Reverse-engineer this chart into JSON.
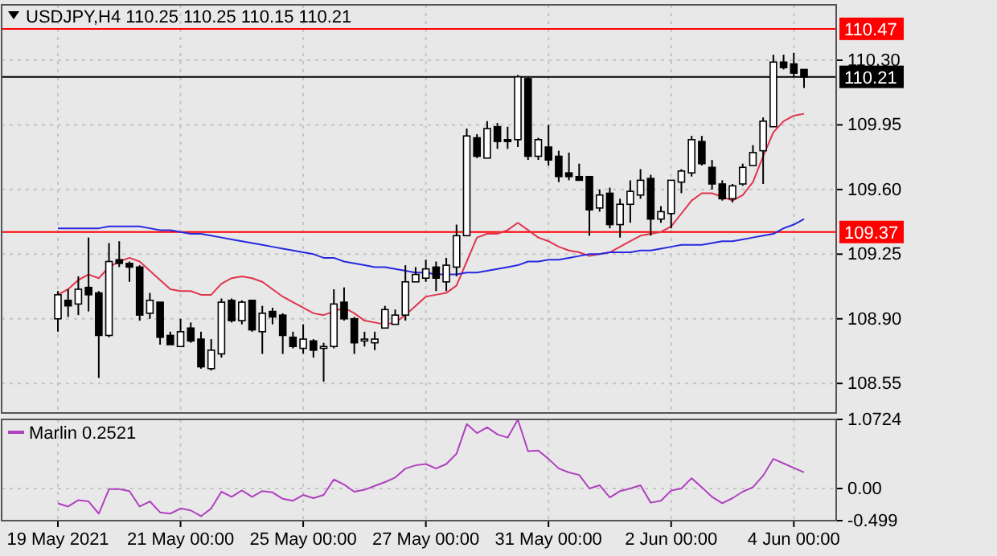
{
  "chart_data": [
    {
      "type": "candlestick",
      "title": "USDJPY,H4  110.25 110.25 110.15 110.21",
      "ohlc": [
        [
          108.9,
          109.05,
          108.83,
          109.03
        ],
        [
          109.0,
          109.06,
          108.91,
          108.97
        ],
        [
          108.98,
          109.13,
          108.92,
          109.06
        ],
        [
          109.07,
          109.34,
          108.94,
          109.03
        ],
        [
          109.04,
          109.05,
          108.58,
          108.81
        ],
        [
          108.81,
          109.31,
          108.8,
          109.21
        ],
        [
          109.22,
          109.32,
          109.18,
          109.2
        ],
        [
          109.2,
          109.21,
          109.1,
          109.18
        ],
        [
          109.18,
          109.19,
          108.89,
          108.92
        ],
        [
          108.93,
          109.04,
          108.9,
          109.0
        ],
        [
          108.99,
          108.99,
          108.76,
          108.8
        ],
        [
          108.81,
          108.83,
          108.76,
          108.76
        ],
        [
          108.75,
          108.9,
          108.75,
          108.83
        ],
        [
          108.85,
          108.88,
          108.77,
          108.78
        ],
        [
          108.79,
          108.83,
          108.63,
          108.64
        ],
        [
          108.63,
          108.79,
          108.62,
          108.73
        ],
        [
          108.71,
          109.01,
          108.69,
          108.99
        ],
        [
          109.0,
          109.01,
          108.88,
          108.89
        ],
        [
          108.89,
          109.0,
          108.87,
          108.99
        ],
        [
          109.0,
          109.0,
          108.83,
          108.84
        ],
        [
          108.83,
          108.97,
          108.71,
          108.93
        ],
        [
          108.94,
          108.96,
          108.87,
          108.91
        ],
        [
          108.92,
          108.93,
          108.71,
          108.81
        ],
        [
          108.8,
          108.83,
          108.74,
          108.75
        ],
        [
          108.74,
          108.87,
          108.71,
          108.79
        ],
        [
          108.78,
          108.79,
          108.69,
          108.73
        ],
        [
          108.74,
          108.77,
          108.56,
          108.75
        ],
        [
          108.75,
          109.06,
          108.74,
          108.98
        ],
        [
          108.99,
          109.07,
          108.89,
          108.9
        ],
        [
          108.9,
          108.91,
          108.71,
          108.77
        ],
        [
          108.78,
          108.83,
          108.75,
          108.79
        ],
        [
          108.77,
          108.83,
          108.73,
          108.79
        ],
        [
          108.85,
          108.97,
          108.85,
          108.95
        ],
        [
          108.87,
          108.95,
          108.87,
          108.92
        ],
        [
          108.92,
          109.19,
          108.89,
          109.1
        ],
        [
          109.1,
          109.18,
          109.1,
          109.14
        ],
        [
          109.12,
          109.22,
          109.1,
          109.17
        ],
        [
          109.18,
          109.21,
          109.05,
          109.12
        ],
        [
          109.1,
          109.23,
          109.05,
          109.19
        ],
        [
          109.18,
          109.41,
          109.13,
          109.35
        ],
        [
          109.35,
          109.93,
          109.35,
          109.89
        ],
        [
          109.88,
          109.9,
          109.77,
          109.78
        ],
        [
          109.77,
          109.97,
          109.77,
          109.93
        ],
        [
          109.94,
          109.96,
          109.82,
          109.86
        ],
        [
          109.87,
          109.94,
          109.82,
          109.86
        ],
        [
          109.87,
          110.22,
          109.83,
          110.21
        ],
        [
          110.2,
          110.21,
          109.76,
          109.78
        ],
        [
          109.78,
          109.88,
          109.76,
          109.87
        ],
        [
          109.83,
          109.95,
          109.73,
          109.76
        ],
        [
          109.78,
          109.81,
          109.64,
          109.67
        ],
        [
          109.69,
          109.8,
          109.65,
          109.67
        ],
        [
          109.67,
          109.74,
          109.65,
          109.65
        ],
        [
          109.67,
          109.67,
          109.35,
          109.49
        ],
        [
          109.5,
          109.6,
          109.48,
          109.57
        ],
        [
          109.58,
          109.61,
          109.39,
          109.41
        ],
        [
          109.41,
          109.55,
          109.34,
          109.52
        ],
        [
          109.52,
          109.65,
          109.42,
          109.59
        ],
        [
          109.57,
          109.71,
          109.55,
          109.65
        ],
        [
          109.66,
          109.68,
          109.35,
          109.44
        ],
        [
          109.44,
          109.51,
          109.42,
          109.48
        ],
        [
          109.47,
          109.65,
          109.39,
          109.65
        ],
        [
          109.64,
          109.71,
          109.58,
          109.7
        ],
        [
          109.69,
          109.89,
          109.67,
          109.87
        ],
        [
          109.86,
          109.89,
          109.73,
          109.74
        ],
        [
          109.72,
          109.76,
          109.6,
          109.63
        ],
        [
          109.63,
          109.65,
          109.54,
          109.55
        ],
        [
          109.55,
          109.63,
          109.53,
          109.62
        ],
        [
          109.63,
          109.74,
          109.62,
          109.72
        ],
        [
          109.73,
          109.84,
          109.73,
          109.8
        ],
        [
          109.81,
          109.99,
          109.63,
          109.97
        ],
        [
          109.94,
          110.33,
          109.94,
          110.29
        ],
        [
          110.29,
          110.33,
          110.25,
          110.26
        ],
        [
          110.28,
          110.34,
          110.21,
          110.23
        ],
        [
          110.25,
          110.25,
          110.15,
          110.21
        ]
      ],
      "series": [
        {
          "type": "line",
          "color": "#e0344c",
          "values": [
            109.03,
            109.06,
            109.11,
            109.14,
            109.12,
            109.18,
            109.21,
            109.23,
            109.21,
            109.16,
            109.11,
            109.06,
            109.05,
            109.05,
            109.03,
            109.03,
            109.09,
            109.12,
            109.13,
            109.12,
            109.1,
            109.06,
            109.02,
            108.99,
            108.96,
            108.93,
            108.92,
            108.94,
            108.96,
            108.93,
            108.89,
            108.88,
            108.87,
            108.88,
            108.92,
            108.97,
            109.02,
            109.03,
            109.04,
            109.08,
            109.21,
            109.34,
            109.36,
            109.36,
            109.38,
            109.42,
            109.38,
            109.34,
            109.32,
            109.29,
            109.27,
            109.26,
            109.24,
            109.25,
            109.26,
            109.29,
            109.32,
            109.35,
            109.36,
            109.37,
            109.4,
            109.47,
            109.54,
            109.58,
            109.58,
            109.56,
            109.54,
            109.57,
            109.64,
            109.78,
            109.91,
            109.97,
            110.0,
            110.01
          ]
        },
        {
          "type": "line",
          "color": "#2828e0",
          "values": [
            109.39,
            109.39,
            109.39,
            109.39,
            109.39,
            109.4,
            109.4,
            109.4,
            109.4,
            109.39,
            109.38,
            109.38,
            109.37,
            109.36,
            109.36,
            109.35,
            109.34,
            109.33,
            109.32,
            109.31,
            109.3,
            109.29,
            109.28,
            109.27,
            109.26,
            109.25,
            109.23,
            109.23,
            109.21,
            109.2,
            109.19,
            109.18,
            109.18,
            109.17,
            109.16,
            109.15,
            109.15,
            109.14,
            109.14,
            109.14,
            109.15,
            109.15,
            109.16,
            109.17,
            109.18,
            109.19,
            109.21,
            109.21,
            109.22,
            109.22,
            109.23,
            109.24,
            109.25,
            109.25,
            109.26,
            109.26,
            109.26,
            109.27,
            109.27,
            109.28,
            109.29,
            109.3,
            109.3,
            109.3,
            109.31,
            109.32,
            109.32,
            109.33,
            109.34,
            109.35,
            109.36,
            109.39,
            109.41,
            109.44
          ]
        }
      ],
      "ref_lines": [
        {
          "axis": "y",
          "value": 110.47,
          "label": "110.47",
          "color": "#ff0000"
        },
        {
          "axis": "y",
          "value": 109.37,
          "label": "109.37",
          "color": "#ff0000"
        },
        {
          "axis": "y",
          "value": 110.21,
          "label": "110.21",
          "color": "#000000"
        }
      ],
      "ylim": [
        108.39,
        110.6
      ],
      "yticks": [
        {
          "value": 110.3,
          "label": "110.30"
        },
        109.95,
        {
          "value": 109.6,
          "label": "109.60"
        },
        109.25,
        {
          "value": 108.9,
          "label": "108.90"
        },
        108.55
      ],
      "grid": true,
      "tick_labels": "y"
    },
    {
      "type": "line",
      "categories": [
        "19 May 2021",
        null,
        null,
        null,
        null,
        null,
        null,
        null,
        null,
        null,
        null,
        null,
        "21 May 00:00",
        null,
        null,
        null,
        null,
        null,
        null,
        null,
        null,
        null,
        null,
        null,
        "25 May 00:00",
        null,
        null,
        null,
        null,
        null,
        null,
        null,
        null,
        null,
        null,
        null,
        "27 May 00:00",
        null,
        null,
        null,
        null,
        null,
        null,
        null,
        null,
        null,
        null,
        null,
        "31 May 00:00",
        null,
        null,
        null,
        null,
        null,
        null,
        null,
        null,
        null,
        null,
        null,
        "2 Jun 00:00",
        null,
        null,
        null,
        null,
        null,
        null,
        null,
        null,
        null,
        null,
        null,
        "4 Jun 00:00",
        null
      ],
      "series": [
        {
          "name": "Marlin 0.2521",
          "color": "#b040c0",
          "values": [
            -0.23,
            -0.28,
            -0.18,
            -0.2,
            -0.39,
            -0.01,
            -0.01,
            -0.04,
            -0.28,
            -0.2,
            -0.37,
            -0.39,
            -0.31,
            -0.34,
            -0.43,
            -0.31,
            -0.05,
            -0.13,
            -0.03,
            -0.13,
            -0.04,
            -0.06,
            -0.16,
            -0.19,
            -0.1,
            -0.15,
            -0.1,
            0.14,
            0.06,
            -0.05,
            -0.02,
            0.04,
            0.1,
            0.17,
            0.31,
            0.36,
            0.38,
            0.31,
            0.38,
            0.54,
            1.0,
            0.86,
            0.95,
            0.84,
            0.79,
            1.07,
            0.58,
            0.59,
            0.46,
            0.31,
            0.25,
            0.21,
            0.0,
            0.05,
            -0.14,
            -0.04,
            0.0,
            0.05,
            -0.22,
            -0.19,
            -0.03,
            0.0,
            0.16,
            0.02,
            -0.13,
            -0.23,
            -0.15,
            -0.05,
            0.02,
            0.2,
            0.46,
            0.39,
            0.32,
            0.25
          ]
        }
      ],
      "ylim": [
        -0.499,
        1.0724
      ],
      "yticks": [
        1.0724,
        {
          "value": 0,
          "label": "0.00"
        },
        -0.499
      ],
      "grid": true,
      "legend": "top left"
    }
  ]
}
